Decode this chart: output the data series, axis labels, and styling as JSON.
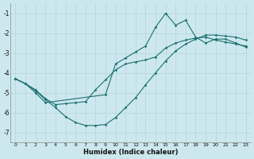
{
  "xlabel": "Humidex (Indice chaleur)",
  "background_color": "#cce8ee",
  "grid_color": "#b5d5db",
  "line_color": "#1a7070",
  "xlim": [
    -0.5,
    23.5
  ],
  "ylim": [
    -7.5,
    -0.5
  ],
  "yticks": [
    -7,
    -6,
    -5,
    -4,
    -3,
    -2,
    -1
  ],
  "xticks": [
    0,
    1,
    2,
    3,
    4,
    5,
    6,
    7,
    8,
    9,
    10,
    11,
    12,
    13,
    14,
    15,
    16,
    17,
    18,
    19,
    20,
    21,
    22,
    23
  ],
  "line1_x": [
    0,
    1,
    2,
    3,
    4,
    5,
    6,
    7,
    8,
    9,
    10,
    11,
    12,
    13,
    14,
    15,
    16,
    17,
    18,
    19,
    20,
    21,
    22,
    23
  ],
  "line1_y": [
    -4.3,
    -4.55,
    -4.9,
    -5.35,
    -5.75,
    -6.2,
    -6.5,
    -6.65,
    -6.65,
    -6.6,
    -6.25,
    -5.75,
    -5.25,
    -4.6,
    -4.0,
    -3.4,
    -2.9,
    -2.55,
    -2.3,
    -2.1,
    -2.1,
    -2.15,
    -2.2,
    -2.35
  ],
  "line2_x": [
    0,
    1,
    2,
    3,
    9,
    10,
    11,
    12,
    13,
    14,
    15,
    16,
    17,
    18,
    19,
    20,
    21,
    22,
    23
  ],
  "line2_y": [
    -4.3,
    -4.55,
    -5.0,
    -5.5,
    -5.1,
    -3.55,
    -3.25,
    -2.95,
    -2.65,
    -1.7,
    -1.0,
    -1.6,
    -1.35,
    -2.2,
    -2.5,
    -2.3,
    -2.3,
    -2.5,
    -2.7
  ],
  "line3_x": [
    0,
    1,
    2,
    3,
    4,
    5,
    6,
    7,
    8,
    9,
    10,
    11,
    12,
    13,
    14,
    15,
    16,
    17,
    18,
    19,
    20,
    21,
    22,
    23
  ],
  "line3_y": [
    -4.3,
    -4.55,
    -4.85,
    -5.3,
    -5.6,
    -5.55,
    -5.5,
    -5.45,
    -4.85,
    -4.35,
    -3.85,
    -3.55,
    -3.45,
    -3.35,
    -3.2,
    -2.75,
    -2.5,
    -2.35,
    -2.25,
    -2.2,
    -2.35,
    -2.45,
    -2.55,
    -2.65
  ]
}
